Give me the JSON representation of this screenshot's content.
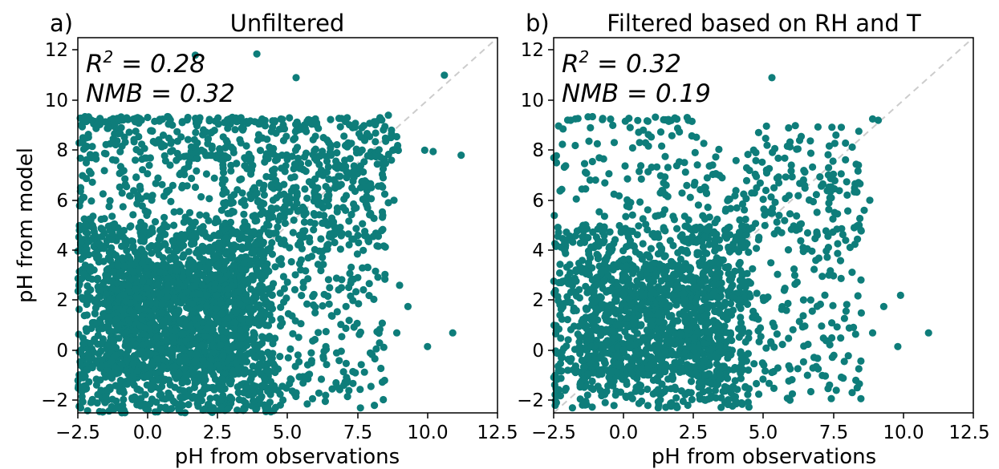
{
  "figure": {
    "ylabel": "pH from model",
    "marker_color": "#0e7d7a",
    "identity_line_color": "#cccccc"
  },
  "chart_data": [
    {
      "type": "scatter",
      "panel_label": "a)",
      "title": "Unfiltered",
      "xlabel": "pH from observations",
      "ylabel": "pH from model",
      "xlim": [
        -2.5,
        12.5
      ],
      "ylim": [
        -2.5,
        12.5
      ],
      "xticks": [
        "−2.5",
        "0.0",
        "2.5",
        "5.0",
        "7.5",
        "10.0",
        "12.5"
      ],
      "yticks": [
        "−2",
        "0",
        "2",
        "4",
        "6",
        "8",
        "10",
        "12"
      ],
      "grid": false,
      "identity_line": "y = x (dashed, light gray)",
      "stats": {
        "r2_prefix": "R",
        "r2_exp": "2",
        "r2_value": " = 0.28",
        "nmb": "NMB = 0.32"
      },
      "points": [
        [
          1.7,
          11.8
        ],
        [
          3.9,
          11.85
        ],
        [
          5.3,
          10.9
        ],
        [
          10.6,
          11.0
        ],
        [
          11.2,
          7.8
        ],
        [
          10.2,
          7.95
        ],
        [
          9.9,
          8.0
        ],
        [
          9.0,
          2.6
        ],
        [
          9.3,
          1.75
        ],
        [
          8.9,
          0.7
        ],
        [
          10.0,
          0.15
        ],
        [
          10.9,
          0.7
        ],
        [
          8.3,
          9.3
        ],
        [
          8.6,
          9.4
        ],
        [
          7.6,
          -2.3
        ],
        [
          8.1,
          -2.2
        ],
        [
          8.6,
          5.9
        ],
        [
          8.4,
          5.4
        ],
        [
          8.8,
          6.0
        ],
        [
          -2.4,
          4.3
        ],
        [
          -2.2,
          7.5
        ],
        [
          -2.4,
          -2.3
        ]
      ],
      "clusters": [
        {
          "x": [
            -2.5,
            9.0
          ],
          "y": [
            7.6,
            9.3
          ],
          "n": 300
        },
        {
          "x": [
            -2.5,
            6.0
          ],
          "y": [
            9.1,
            9.35
          ],
          "n": 60
        },
        {
          "x": [
            -2.5,
            4.5
          ],
          "y": [
            -2.5,
            5.0
          ],
          "n": 1400
        },
        {
          "x": [
            -1.5,
            3.5
          ],
          "y": [
            -1.0,
            3.5
          ],
          "n": 900
        },
        {
          "x": [
            2.5,
            8.5
          ],
          "y": [
            -2.3,
            7.5
          ],
          "n": 450
        },
        {
          "x": [
            -2.5,
            8.5
          ],
          "y": [
            4.0,
            7.8
          ],
          "n": 350
        }
      ]
    },
    {
      "type": "scatter",
      "panel_label": "b)",
      "title": "Filtered based on RH and T",
      "xlabel": "pH from observations",
      "ylabel": "",
      "xlim": [
        -2.5,
        12.5
      ],
      "ylim": [
        -2.5,
        12.5
      ],
      "xticks": [
        "−2.5",
        "0.0",
        "2.5",
        "5.0",
        "7.5",
        "10.0",
        "12.5"
      ],
      "yticks": [
        "−2",
        "0",
        "2",
        "4",
        "6",
        "8",
        "10",
        "12"
      ],
      "grid": false,
      "identity_line": "y = x (dashed, light gray)",
      "stats": {
        "r2_prefix": "R",
        "r2_exp": "2",
        "r2_value": " = 0.32",
        "nmb": "NMB = 0.19"
      },
      "points": [
        [
          5.3,
          10.9
        ],
        [
          9.1,
          9.2
        ],
        [
          8.9,
          9.25
        ],
        [
          9.3,
          1.75
        ],
        [
          9.9,
          2.2
        ],
        [
          8.9,
          0.7
        ],
        [
          9.8,
          0.15
        ],
        [
          10.9,
          0.7
        ],
        [
          7.6,
          -1.6
        ],
        [
          8.3,
          -1.2
        ],
        [
          8.8,
          6.0
        ],
        [
          8.6,
          5.6
        ],
        [
          -2.4,
          7.5
        ],
        [
          -2.4,
          4.2
        ]
      ],
      "clusters": [
        {
          "x": [
            -2.5,
            8.5
          ],
          "y": [
            7.0,
            9.0
          ],
          "n": 90
        },
        {
          "x": [
            -2.0,
            2.5
          ],
          "y": [
            9.15,
            9.35
          ],
          "n": 25
        },
        {
          "x": [
            -2.5,
            4.5
          ],
          "y": [
            -2.3,
            5.0
          ],
          "n": 900
        },
        {
          "x": [
            -1.5,
            3.5
          ],
          "y": [
            -1.0,
            3.5
          ],
          "n": 600
        },
        {
          "x": [
            2.5,
            8.5
          ],
          "y": [
            -2.0,
            7.5
          ],
          "n": 300
        },
        {
          "x": [
            -2.5,
            8.5
          ],
          "y": [
            4.0,
            7.2
          ],
          "n": 160
        }
      ]
    }
  ]
}
